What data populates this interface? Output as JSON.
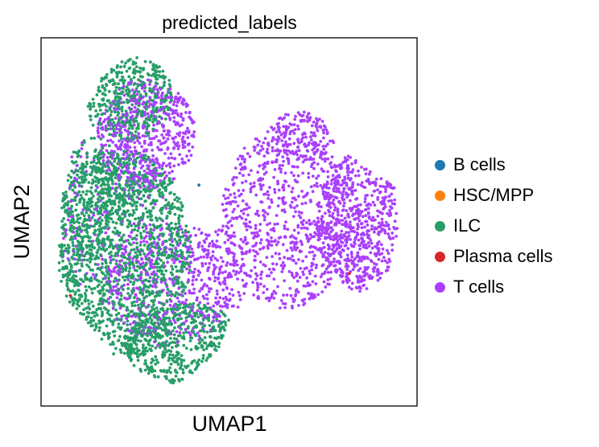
{
  "chart_data": {
    "type": "scatter",
    "title": "predicted_labels",
    "xlabel": "UMAP1",
    "ylabel": "UMAP2",
    "xlim": [
      0,
      10
    ],
    "ylim": [
      0,
      10
    ],
    "grid": false,
    "ticks": false,
    "legend_position": "right",
    "series": [
      {
        "name": "B cells",
        "color": "#1f77b4",
        "points": [
          [
            4.2,
            6.0
          ]
        ]
      },
      {
        "name": "HSC/MPP",
        "color": "#ff7f0e",
        "points": []
      },
      {
        "name": "ILC",
        "color": "#279e68",
        "regions": [
          {
            "cx": 2.1,
            "cy": 4.2,
            "rx": 1.9,
            "ry": 2.8,
            "n": 1500
          },
          {
            "cx": 2.3,
            "cy": 8.4,
            "rx": 1.2,
            "ry": 1.2,
            "n": 420
          },
          {
            "cx": 3.8,
            "cy": 1.7,
            "rx": 1.6,
            "ry": 1.1,
            "n": 520
          },
          {
            "cx": 1.4,
            "cy": 5.7,
            "rx": 0.9,
            "ry": 1.6,
            "n": 260
          }
        ]
      },
      {
        "name": "Plasma cells",
        "color": "#d62728",
        "points": [
          [
            0.78,
            3.0
          ],
          [
            8.2,
            3.6
          ]
        ]
      },
      {
        "name": "T cells",
        "color": "#aa40fc",
        "regions": [
          {
            "cx": 6.5,
            "cy": 5.1,
            "rx": 1.7,
            "ry": 2.5,
            "n": 750
          },
          {
            "cx": 8.6,
            "cy": 5.0,
            "rx": 1.3,
            "ry": 1.9,
            "n": 650
          },
          {
            "cx": 6.9,
            "cy": 7.3,
            "rx": 0.9,
            "ry": 0.7,
            "n": 160
          },
          {
            "cx": 2.8,
            "cy": 7.4,
            "rx": 1.3,
            "ry": 1.5,
            "n": 520
          },
          {
            "cx": 3.4,
            "cy": 3.3,
            "rx": 1.7,
            "ry": 1.7,
            "n": 380
          },
          {
            "cx": 1.9,
            "cy": 5.2,
            "rx": 1.5,
            "ry": 2.4,
            "n": 230
          },
          {
            "cx": 4.7,
            "cy": 3.5,
            "rx": 0.8,
            "ry": 1.3,
            "n": 130
          }
        ]
      }
    ]
  }
}
